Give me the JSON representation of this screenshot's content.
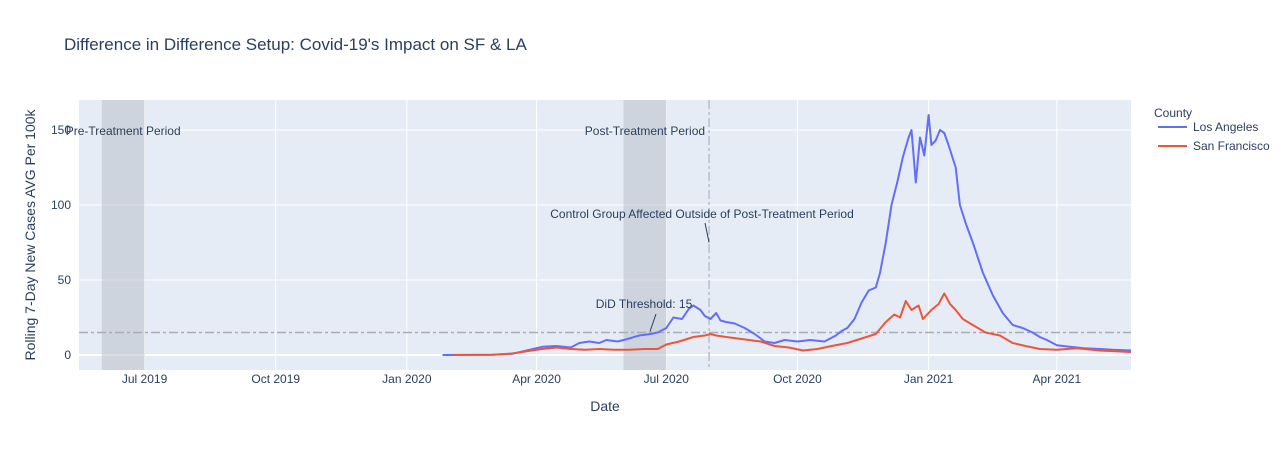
{
  "chart_data": {
    "type": "line",
    "title": "Difference in Difference Setup: Covid-19's Impact on SF & LA",
    "xlabel": "Date",
    "ylabel": "Rolling 7-Day New Cases AVG Per 100k",
    "xlim": [
      "2019-05-16",
      "2021-05-23"
    ],
    "ylim": [
      -10,
      170
    ],
    "x_ticks": [
      {
        "date": "2019-07-01",
        "label": "Jul 2019"
      },
      {
        "date": "2019-10-01",
        "label": "Oct 2019"
      },
      {
        "date": "2020-01-01",
        "label": "Jan 2020"
      },
      {
        "date": "2020-04-01",
        "label": "Apr 2020"
      },
      {
        "date": "2020-07-01",
        "label": "Jul 2020"
      },
      {
        "date": "2020-10-01",
        "label": "Oct 2020"
      },
      {
        "date": "2021-01-01",
        "label": "Jan 2021"
      },
      {
        "date": "2021-04-01",
        "label": "Apr 2021"
      }
    ],
    "y_ticks": [
      0,
      50,
      100,
      150
    ],
    "grid": true,
    "legend": {
      "title": "County",
      "position": "right"
    },
    "threshold": {
      "y": 15,
      "label": "DiD Threshold: 15",
      "style": "dash-dot",
      "color": "#a9acb7"
    },
    "vline": {
      "date": "2020-07-31",
      "style": "dash-dot",
      "color": "#b8bfcf"
    },
    "shaded_regions": [
      {
        "start": "2019-06-01",
        "end": "2019-07-01",
        "label": "Pre-Treatment Period"
      },
      {
        "start": "2020-06-01",
        "end": "2020-07-01",
        "label": "Post-Treatment Period"
      }
    ],
    "annotations": [
      {
        "text": "Control Group Affected Outside of Post-Treatment Period",
        "x": "2020-07-31",
        "y": 75
      }
    ],
    "series": [
      {
        "name": "Los Angeles",
        "color": "#636efa",
        "points": [
          [
            "2020-01-26",
            0
          ],
          [
            "2020-02-15",
            0.1
          ],
          [
            "2020-03-01",
            0.2
          ],
          [
            "2020-03-15",
            0.8
          ],
          [
            "2020-03-25",
            3
          ],
          [
            "2020-04-05",
            5.5
          ],
          [
            "2020-04-15",
            6
          ],
          [
            "2020-04-25",
            5
          ],
          [
            "2020-05-01",
            8
          ],
          [
            "2020-05-08",
            9
          ],
          [
            "2020-05-15",
            8
          ],
          [
            "2020-05-20",
            10
          ],
          [
            "2020-05-28",
            9
          ],
          [
            "2020-06-05",
            11
          ],
          [
            "2020-06-12",
            13
          ],
          [
            "2020-06-20",
            14
          ],
          [
            "2020-06-25",
            15
          ],
          [
            "2020-07-01",
            18
          ],
          [
            "2020-07-06",
            25
          ],
          [
            "2020-07-12",
            24
          ],
          [
            "2020-07-17",
            31
          ],
          [
            "2020-07-20",
            33
          ],
          [
            "2020-07-25",
            30
          ],
          [
            "2020-07-28",
            26
          ],
          [
            "2020-08-01",
            24
          ],
          [
            "2020-08-05",
            28
          ],
          [
            "2020-08-08",
            23
          ],
          [
            "2020-08-12",
            22
          ],
          [
            "2020-08-18",
            21
          ],
          [
            "2020-08-25",
            18
          ],
          [
            "2020-09-01",
            14
          ],
          [
            "2020-09-08",
            9
          ],
          [
            "2020-09-15",
            8
          ],
          [
            "2020-09-22",
            10
          ],
          [
            "2020-10-01",
            9
          ],
          [
            "2020-10-10",
            10
          ],
          [
            "2020-10-20",
            9
          ],
          [
            "2020-10-28",
            13
          ],
          [
            "2020-11-01",
            16
          ],
          [
            "2020-11-05",
            18
          ],
          [
            "2020-11-10",
            24
          ],
          [
            "2020-11-15",
            35
          ],
          [
            "2020-11-20",
            43
          ],
          [
            "2020-11-25",
            45
          ],
          [
            "2020-11-28",
            55
          ],
          [
            "2020-12-02",
            75
          ],
          [
            "2020-12-06",
            100
          ],
          [
            "2020-12-10",
            115
          ],
          [
            "2020-12-14",
            132
          ],
          [
            "2020-12-18",
            145
          ],
          [
            "2020-12-20",
            150
          ],
          [
            "2020-12-23",
            115
          ],
          [
            "2020-12-26",
            145
          ],
          [
            "2020-12-29",
            133
          ],
          [
            "2021-01-01",
            160
          ],
          [
            "2021-01-03",
            140
          ],
          [
            "2021-01-06",
            143
          ],
          [
            "2021-01-09",
            150
          ],
          [
            "2021-01-12",
            148
          ],
          [
            "2021-01-15",
            140
          ],
          [
            "2021-01-20",
            125
          ],
          [
            "2021-01-23",
            100
          ],
          [
            "2021-01-27",
            88
          ],
          [
            "2021-02-01",
            75
          ],
          [
            "2021-02-08",
            55
          ],
          [
            "2021-02-15",
            40
          ],
          [
            "2021-02-22",
            28
          ],
          [
            "2021-03-01",
            20
          ],
          [
            "2021-03-08",
            18
          ],
          [
            "2021-03-15",
            15
          ],
          [
            "2021-03-20",
            12
          ],
          [
            "2021-03-25",
            10
          ],
          [
            "2021-04-01",
            6.5
          ],
          [
            "2021-04-10",
            5.5
          ],
          [
            "2021-04-20",
            4.5
          ],
          [
            "2021-05-01",
            4
          ],
          [
            "2021-05-10",
            3.5
          ],
          [
            "2021-05-23",
            3
          ]
        ]
      },
      {
        "name": "San Francisco",
        "color": "#ef553b",
        "points": [
          [
            "2020-02-03",
            0
          ],
          [
            "2020-03-01",
            0.2
          ],
          [
            "2020-03-15",
            1
          ],
          [
            "2020-03-25",
            2.5
          ],
          [
            "2020-04-05",
            4
          ],
          [
            "2020-04-15",
            5
          ],
          [
            "2020-04-25",
            4
          ],
          [
            "2020-05-05",
            3.5
          ],
          [
            "2020-05-15",
            4
          ],
          [
            "2020-05-25",
            3.5
          ],
          [
            "2020-06-05",
            3.5
          ],
          [
            "2020-06-15",
            4
          ],
          [
            "2020-06-25",
            4
          ],
          [
            "2020-07-01",
            7
          ],
          [
            "2020-07-10",
            9
          ],
          [
            "2020-07-20",
            12
          ],
          [
            "2020-07-28",
            13
          ],
          [
            "2020-08-01",
            14
          ],
          [
            "2020-08-05",
            13
          ],
          [
            "2020-08-12",
            12
          ],
          [
            "2020-08-20",
            11
          ],
          [
            "2020-08-28",
            10
          ],
          [
            "2020-09-05",
            9
          ],
          [
            "2020-09-15",
            6
          ],
          [
            "2020-09-25",
            5
          ],
          [
            "2020-10-05",
            3
          ],
          [
            "2020-10-15",
            4
          ],
          [
            "2020-10-25",
            6
          ],
          [
            "2020-11-05",
            8
          ],
          [
            "2020-11-15",
            11
          ],
          [
            "2020-11-25",
            14
          ],
          [
            "2020-12-02",
            22
          ],
          [
            "2020-12-08",
            27
          ],
          [
            "2020-12-12",
            25
          ],
          [
            "2020-12-16",
            36
          ],
          [
            "2020-12-20",
            30
          ],
          [
            "2020-12-25",
            33
          ],
          [
            "2020-12-28",
            24
          ],
          [
            "2021-01-03",
            30
          ],
          [
            "2021-01-08",
            34
          ],
          [
            "2021-01-12",
            41
          ],
          [
            "2021-01-16",
            34
          ],
          [
            "2021-01-20",
            30
          ],
          [
            "2021-01-25",
            24
          ],
          [
            "2021-02-01",
            20
          ],
          [
            "2021-02-10",
            15
          ],
          [
            "2021-02-20",
            13
          ],
          [
            "2021-03-01",
            8
          ],
          [
            "2021-03-10",
            6
          ],
          [
            "2021-03-20",
            4
          ],
          [
            "2021-04-01",
            3.5
          ],
          [
            "2021-04-15",
            4.5
          ],
          [
            "2021-05-01",
            3
          ],
          [
            "2021-05-23",
            2
          ]
        ]
      }
    ]
  }
}
